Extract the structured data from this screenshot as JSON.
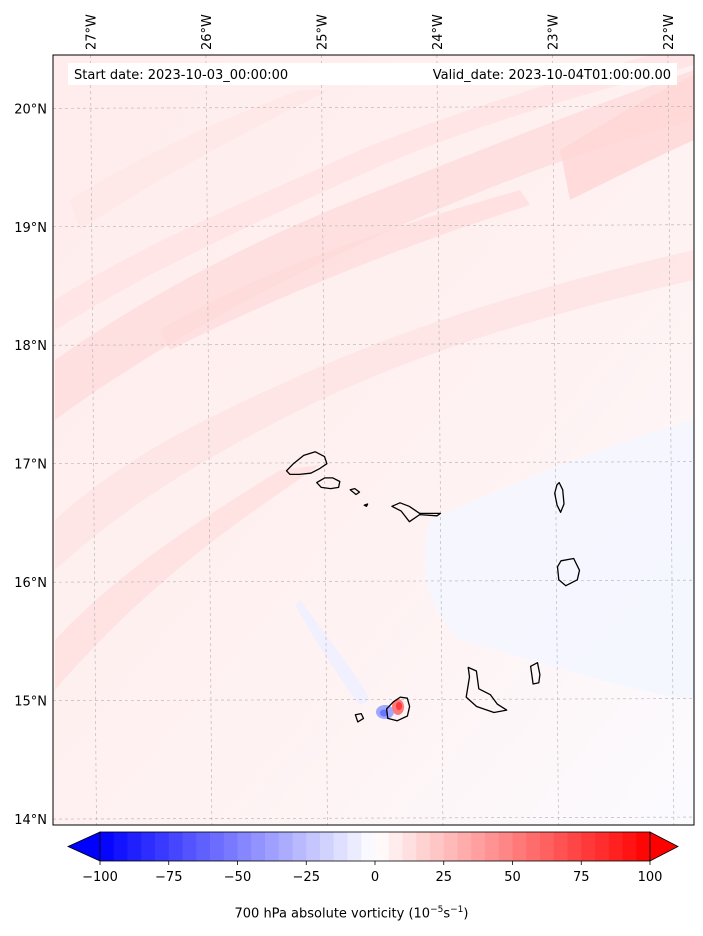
{
  "header": {
    "start_date": "Start date: 2023-10-03_00:00:00",
    "valid_date": "Valid_date: 2023-10-04T01:00:00.00"
  },
  "map": {
    "lon_range": [
      -27.35,
      -21.8
    ],
    "lat_range": [
      13.95,
      20.45
    ],
    "lon_ticks": [
      {
        "value": -27,
        "label": "27°W"
      },
      {
        "value": -26,
        "label": "26°W"
      },
      {
        "value": -25,
        "label": "25°W"
      },
      {
        "value": -24,
        "label": "24°W"
      },
      {
        "value": -23,
        "label": "23°W"
      },
      {
        "value": -22,
        "label": "22°W"
      }
    ],
    "lat_ticks": [
      {
        "value": 20,
        "label": "20°N"
      },
      {
        "value": 19,
        "label": "19°N"
      },
      {
        "value": 18,
        "label": "18°N"
      },
      {
        "value": 17,
        "label": "17°N"
      },
      {
        "value": 16,
        "label": "16°N"
      },
      {
        "value": 15,
        "label": "15°N"
      },
      {
        "value": 14,
        "label": "14°N"
      }
    ],
    "islands": [
      {
        "name": "Santo Antão",
        "points": [
          [
            -25.33,
            16.94
          ],
          [
            -25.27,
            17.0
          ],
          [
            -25.18,
            17.07
          ],
          [
            -25.08,
            17.1
          ],
          [
            -25.0,
            17.06
          ],
          [
            -24.98,
            17.0
          ],
          [
            -25.04,
            16.96
          ],
          [
            -25.12,
            16.92
          ],
          [
            -25.22,
            16.91
          ],
          [
            -25.3,
            16.91
          ]
        ]
      },
      {
        "name": "São Vicente",
        "points": [
          [
            -25.07,
            16.84
          ],
          [
            -25.0,
            16.88
          ],
          [
            -24.93,
            16.88
          ],
          [
            -24.87,
            16.85
          ],
          [
            -24.88,
            16.8
          ],
          [
            -24.95,
            16.79
          ],
          [
            -25.03,
            16.8
          ]
        ]
      },
      {
        "name": "Santa Luzia",
        "points": [
          [
            -24.78,
            16.78
          ],
          [
            -24.74,
            16.79
          ],
          [
            -24.7,
            16.76
          ],
          [
            -24.73,
            16.74
          ]
        ]
      },
      {
        "name": "Branco",
        "points": [
          [
            -24.66,
            16.65
          ],
          [
            -24.63,
            16.66
          ],
          [
            -24.64,
            16.64
          ]
        ]
      },
      {
        "name": "São Nicolau",
        "points": [
          [
            -24.42,
            16.64
          ],
          [
            -24.35,
            16.67
          ],
          [
            -24.27,
            16.64
          ],
          [
            -24.18,
            16.58
          ],
          [
            -24.0,
            16.58
          ],
          [
            -24.03,
            16.56
          ],
          [
            -24.18,
            16.57
          ],
          [
            -24.27,
            16.51
          ],
          [
            -24.34,
            16.6
          ]
        ]
      },
      {
        "name": "Sal",
        "points": [
          [
            -22.99,
            16.82
          ],
          [
            -22.97,
            16.84
          ],
          [
            -22.94,
            16.78
          ],
          [
            -22.93,
            16.66
          ],
          [
            -22.96,
            16.59
          ],
          [
            -22.99,
            16.65
          ],
          [
            -23.01,
            16.75
          ]
        ]
      },
      {
        "name": "Boa Vista",
        "points": [
          [
            -22.96,
            16.18
          ],
          [
            -22.85,
            16.2
          ],
          [
            -22.8,
            16.1
          ],
          [
            -22.82,
            16.02
          ],
          [
            -22.92,
            15.97
          ],
          [
            -22.98,
            16.02
          ],
          [
            -22.99,
            16.13
          ]
        ]
      },
      {
        "name": "Maio",
        "points": [
          [
            -23.23,
            15.29
          ],
          [
            -23.17,
            15.32
          ],
          [
            -23.15,
            15.22
          ],
          [
            -23.16,
            15.15
          ],
          [
            -23.21,
            15.14
          ],
          [
            -23.22,
            15.22
          ]
        ]
      },
      {
        "name": "Santiago",
        "points": [
          [
            -23.77,
            15.28
          ],
          [
            -23.7,
            15.25
          ],
          [
            -23.68,
            15.1
          ],
          [
            -23.58,
            15.05
          ],
          [
            -23.52,
            14.97
          ],
          [
            -23.44,
            14.92
          ],
          [
            -23.55,
            14.9
          ],
          [
            -23.7,
            14.95
          ],
          [
            -23.79,
            15.03
          ],
          [
            -23.76,
            15.2
          ]
        ]
      },
      {
        "name": "Fogo",
        "points": [
          [
            -24.48,
            14.93
          ],
          [
            -24.42,
            14.99
          ],
          [
            -24.36,
            15.03
          ],
          [
            -24.3,
            15.02
          ],
          [
            -24.28,
            14.95
          ],
          [
            -24.3,
            14.87
          ],
          [
            -24.39,
            14.83
          ],
          [
            -24.47,
            14.85
          ]
        ]
      },
      {
        "name": "Brava",
        "points": [
          [
            -24.75,
            14.88
          ],
          [
            -24.7,
            14.89
          ],
          [
            -24.68,
            14.85
          ],
          [
            -24.73,
            14.82
          ]
        ]
      }
    ]
  },
  "colorbar": {
    "range": [
      -100,
      100
    ],
    "ticks": [
      -100,
      -75,
      -50,
      -25,
      0,
      25,
      50,
      75,
      100
    ],
    "tick_labels": [
      "−100",
      "−75",
      "−50",
      "−25",
      "0",
      "25",
      "50",
      "75",
      "100"
    ],
    "colors": {
      "negative": "#0000ff",
      "zero": "#ffffff",
      "positive": "#ff0000"
    },
    "title_main": "700 hPa absolute vorticity (10",
    "title_exp1": "−5",
    "title_mid": "s",
    "title_exp2": "−1",
    "title_end": ")"
  }
}
